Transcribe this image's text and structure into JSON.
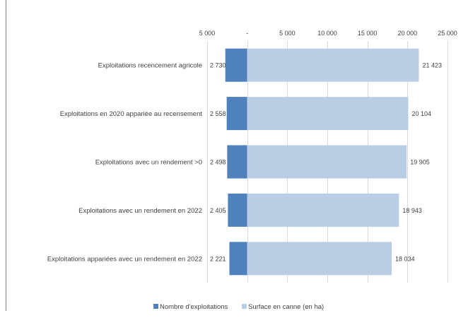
{
  "chart_data": {
    "type": "bar",
    "orientation": "horizontal",
    "stacked": "diverging",
    "categories": [
      "Exploitations recencement agricole",
      "Exploitations en 2020 appariée au recensement",
      "Exploitations avec un rendement >0",
      "Exploitations avec un rendement en 2022",
      "Exploitations appariées avec un rendement en 2022"
    ],
    "series": [
      {
        "name": "Nombre d'exploitations",
        "values": [
          2730,
          2558,
          2498,
          2405,
          2221
        ],
        "display": "negative",
        "color": "#4f81bd"
      },
      {
        "name": "Surface en canne (en ha)",
        "values": [
          21423,
          20104,
          19905,
          18943,
          18034
        ],
        "display": "positive",
        "color": "#b9cde5"
      }
    ],
    "value_labels": [
      [
        "2 730",
        "2 558",
        "2 498",
        "2 405",
        "2 221"
      ],
      [
        "21 423",
        "20 104",
        "19 905",
        "18 943",
        "18 034"
      ]
    ],
    "xlim": [
      -5000,
      25000
    ],
    "x_ticks": [
      -5000,
      0,
      5000,
      10000,
      15000,
      20000,
      25000
    ],
    "x_tick_labels": [
      "5 000",
      "-",
      "5 000",
      "10 000",
      "15 000",
      "20 000",
      "25 000"
    ],
    "x_axis_position": "top",
    "grid": true,
    "legend_position": "bottom",
    "title": "",
    "xlabel": "",
    "ylabel": ""
  }
}
